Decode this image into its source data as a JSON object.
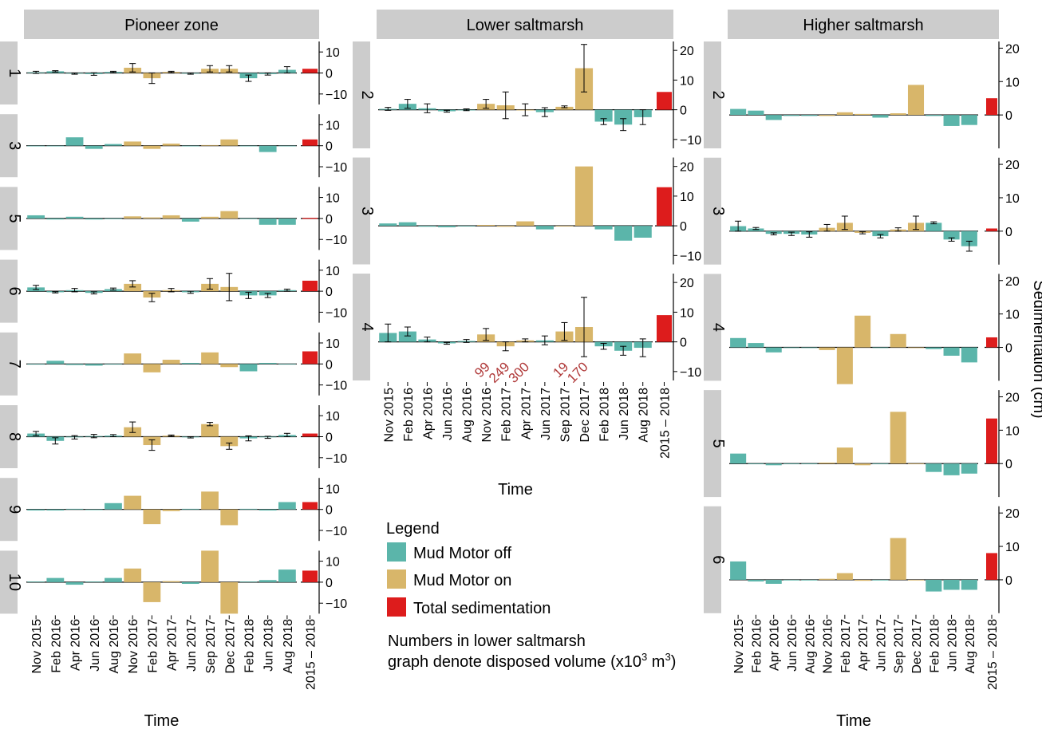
{
  "figure": {
    "time_label": "Time",
    "right_axis_label": "Sedimentation (cm)",
    "total_tick_label": "2015 – 2018",
    "time_categories": [
      "Nov 2015",
      "Feb 2016",
      "Apr 2016",
      "Jun 2016",
      "Aug 2016",
      "Nov 2016",
      "Feb 2017",
      "Apr 2017",
      "Jun 2017",
      "Sep 2017",
      "Dec 2017",
      "Feb 2018",
      "Jun 2018",
      "Aug 2018"
    ],
    "colors": {
      "mud_motor_off": "#5bb5aa",
      "mud_motor_on": "#d8b66a",
      "total": "#dd1c1c",
      "strip": "#cccccc",
      "volume_text": "#b03a3a"
    }
  },
  "legend": {
    "title": "Legend",
    "items": [
      {
        "key": "off",
        "label": "Mud Motor off"
      },
      {
        "key": "on",
        "label": "Mud Motor on"
      },
      {
        "key": "total",
        "label": "Total sedimentation"
      }
    ]
  },
  "note": {
    "line1": "Numbers in lower saltmarsh",
    "line2_prefix": "graph denote disposed volume (x10",
    "line2_sup1": "3",
    "line2_mid": " m",
    "line2_sup2": "3",
    "line2_suffix": ")"
  },
  "chart_data": [
    {
      "type": "bar",
      "title": "Pioneer zone",
      "xlabel": "Time",
      "ylabel": "Sedimentation (cm)",
      "ylim": [
        -15,
        15
      ],
      "yticks": [
        10,
        0,
        -10
      ],
      "categories": [
        "Nov 2015",
        "Feb 2016",
        "Apr 2016",
        "Jun 2016",
        "Aug 2016",
        "Nov 2016",
        "Feb 2017",
        "Apr 2017",
        "Jun 2017",
        "Sep 2017",
        "Dec 2017",
        "Feb 2018",
        "Jun 2018",
        "Aug 2018"
      ],
      "mud_motor_on": [
        false,
        false,
        false,
        false,
        false,
        true,
        true,
        true,
        false,
        true,
        true,
        false,
        false,
        false
      ],
      "panels": [
        {
          "label": "1",
          "values": [
            0.3,
            0.8,
            -0.3,
            -0.5,
            0.5,
            2.5,
            -2.5,
            0.5,
            -0.3,
            2,
            2,
            -2.5,
            -0.5,
            1.5
          ],
          "errors": [
            0.5,
            0.3,
            0.3,
            0.6,
            0.3,
            2,
            2.5,
            0.3,
            0.3,
            1.5,
            1.5,
            1.5,
            0.5,
            1.5
          ],
          "total": 2
        },
        {
          "label": "3",
          "values": [
            0,
            0,
            4,
            -1.5,
            0.8,
            2,
            -1.5,
            1,
            -0.3,
            0.3,
            3,
            -0.3,
            -3,
            -0.3
          ],
          "errors": null,
          "total": 3
        },
        {
          "label": "5",
          "values": [
            1.5,
            -0.5,
            0.8,
            -0.5,
            -0.3,
            1,
            0.5,
            1.5,
            -1.5,
            0.8,
            3.5,
            -0.3,
            -3,
            -3
          ],
          "errors": null,
          "total": 0.3
        },
        {
          "label": "6",
          "values": [
            1.8,
            -0.5,
            0.5,
            -0.8,
            1,
            3.5,
            -3,
            0.5,
            -0.5,
            3.5,
            2,
            -2,
            -2,
            0.5
          ],
          "errors": [
            1,
            0.3,
            0.8,
            0.5,
            0.5,
            1.5,
            2,
            0.8,
            0.5,
            2.5,
            6.5,
            1.5,
            1,
            0.5
          ],
          "total": 5
        },
        {
          "label": "7",
          "values": [
            0,
            1.5,
            -0.5,
            -0.8,
            0,
            5,
            -4,
            2,
            0.5,
            5.5,
            -1.5,
            -3.5,
            0.5,
            0
          ],
          "errors": null,
          "total": 6
        },
        {
          "label": "8",
          "values": [
            1.5,
            -2,
            -0.3,
            0.3,
            0.5,
            4.5,
            -4,
            0.5,
            -0.3,
            6,
            -4.5,
            -0.8,
            -0.3,
            0.8
          ],
          "errors": [
            1,
            1.5,
            0.8,
            0.8,
            0.5,
            2.5,
            2.5,
            0.3,
            0.3,
            0.8,
            1.5,
            1.2,
            0.5,
            0.8
          ],
          "total": 1.5
        },
        {
          "label": "9",
          "values": [
            -0.5,
            -0.5,
            0.3,
            0,
            3,
            6.5,
            -7,
            -0.8,
            0.3,
            8.5,
            -7.5,
            0.3,
            -0.5,
            3.5
          ],
          "errors": null,
          "total": 3.5
        },
        {
          "label": "10",
          "values": [
            0.3,
            2,
            -1.2,
            0.3,
            2,
            6.5,
            -9.5,
            0.5,
            -0.8,
            15,
            -15,
            0.3,
            1,
            6
          ],
          "errors": null,
          "total": 5.5
        }
      ]
    },
    {
      "type": "bar",
      "title": "Lower saltmarsh",
      "xlabel": "Time",
      "ylabel": "Sedimentation (cm)",
      "ylim": [
        -13,
        23
      ],
      "yticks": [
        20,
        10,
        0,
        -10
      ],
      "categories": [
        "Nov 2015",
        "Feb 2016",
        "Apr 2016",
        "Jun 2016",
        "Aug 2016",
        "Nov 2016",
        "Feb 2017",
        "Apr 2017",
        "Jun 2017",
        "Sep 2017",
        "Dec 2017",
        "Feb 2018",
        "Jun 2018",
        "Aug 2018"
      ],
      "mud_motor_on": [
        false,
        false,
        false,
        false,
        false,
        true,
        true,
        true,
        false,
        true,
        true,
        false,
        false,
        false
      ],
      "panels": [
        {
          "label": "2",
          "values": [
            0.3,
            2,
            0.5,
            -0.5,
            0,
            2,
            1.5,
            0,
            -0.8,
            1,
            14,
            -4,
            -5,
            -2.5
          ],
          "errors": [
            0.5,
            1.5,
            1.5,
            0.3,
            0.3,
            1.5,
            4.5,
            2,
            1.5,
            0.3,
            8,
            1,
            2,
            2.5
          ],
          "total": 6
        },
        {
          "label": "3",
          "values": [
            0.8,
            1.2,
            -0.3,
            -0.5,
            0,
            0.3,
            -0.3,
            1.5,
            -1.2,
            0,
            20,
            -1.2,
            -5,
            -4
          ],
          "errors": null,
          "total": 13
        },
        {
          "label": "4",
          "values": [
            3,
            3.5,
            0.8,
            -0.5,
            0.3,
            2.5,
            -1.5,
            0.5,
            0.5,
            3.5,
            5,
            -1.5,
            -3,
            -2
          ],
          "errors": [
            3,
            1.5,
            0.8,
            0.3,
            0.5,
            2,
            1.5,
            0.5,
            1.5,
            3,
            10,
            1,
            1.5,
            3
          ],
          "total": 9
        }
      ],
      "volume_annotations": [
        {
          "category": "Nov 2016",
          "text": "99"
        },
        {
          "category": "Feb 2017",
          "text": "249"
        },
        {
          "category": "Apr 2017",
          "text": "300"
        },
        {
          "category": "Sep 2017",
          "text": "19"
        },
        {
          "category": "Dec 2017",
          "text": "170"
        }
      ]
    },
    {
      "type": "bar",
      "title": "Higher saltmarsh",
      "xlabel": "Time",
      "ylabel": "Sedimentation (cm)",
      "ylim": [
        -10,
        22
      ],
      "yticks": [
        20,
        10,
        0
      ],
      "categories": [
        "Nov 2015",
        "Feb 2016",
        "Apr 2016",
        "Jun 2016",
        "Aug 2016",
        "Nov 2016",
        "Feb 2017",
        "Apr 2017",
        "Jun 2017",
        "Sep 2017",
        "Dec 2017",
        "Feb 2018",
        "Jun 2018",
        "Aug 2018"
      ],
      "mud_motor_on": [
        false,
        false,
        false,
        false,
        false,
        true,
        true,
        true,
        false,
        true,
        true,
        false,
        false,
        false
      ],
      "panels": [
        {
          "label": "2",
          "values": [
            1.8,
            1.3,
            -1.5,
            -0.3,
            -0.3,
            -0.3,
            0.8,
            0.3,
            -0.8,
            0.5,
            9,
            -0.3,
            -3.3,
            -3
          ],
          "errors": null,
          "total": 5
        },
        {
          "label": "3",
          "values": [
            1.5,
            0.8,
            -0.8,
            -0.8,
            -1,
            1,
            2.5,
            -0.5,
            -1.5,
            0.5,
            2.5,
            2.5,
            -2.5,
            -4.5
          ],
          "errors": [
            1.5,
            0.3,
            0.3,
            0.5,
            0.8,
            1,
            2,
            0.3,
            0.5,
            0.5,
            2,
            0.3,
            0.5,
            1.5
          ],
          "total": 0.8
        },
        {
          "label": "4",
          "values": [
            2.8,
            1.3,
            -1.5,
            0,
            0,
            -0.8,
            -11,
            9.5,
            0,
            4,
            0,
            -0.5,
            -2.5,
            -4.5
          ],
          "errors": null,
          "total": 3
        },
        {
          "label": "5",
          "values": [
            3,
            0,
            -0.5,
            0,
            0,
            0.3,
            4.8,
            -0.5,
            0,
            15.5,
            0,
            -2.5,
            -3.5,
            -3
          ],
          "errors": null,
          "total": 13.5
        },
        {
          "label": "6",
          "values": [
            5.5,
            -0.5,
            -1.2,
            0,
            0,
            0.3,
            2,
            -0.3,
            0,
            12.5,
            0,
            -3.5,
            -3,
            -3
          ],
          "errors": null,
          "total": 8
        }
      ]
    }
  ]
}
